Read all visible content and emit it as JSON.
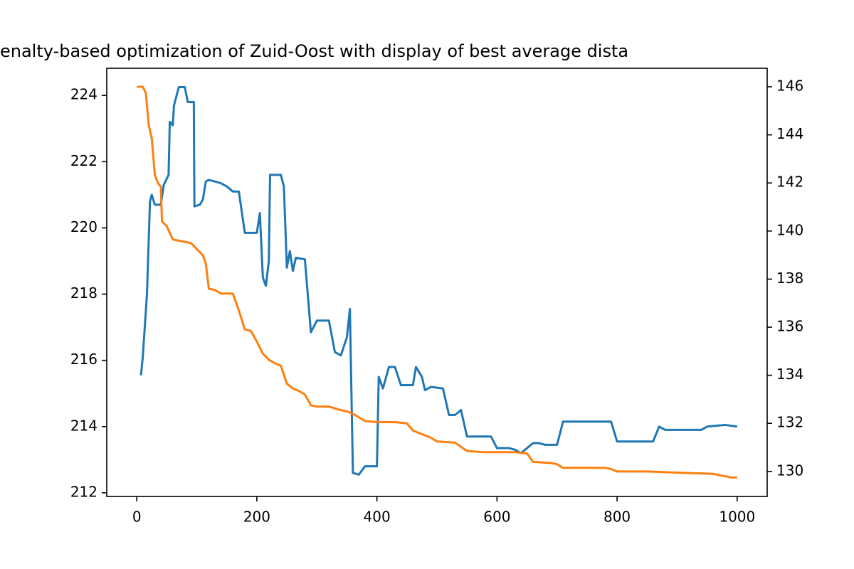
{
  "chart_data": {
    "type": "line",
    "title": "enalty-based optimization of Zuid-Oost with display of best average dista",
    "xlim": [
      -50,
      1050
    ],
    "xticks": [
      0,
      200,
      400,
      600,
      800,
      1000
    ],
    "ylim": [
      211.89,
      224.82
    ],
    "yticks": [
      212,
      214,
      216,
      218,
      220,
      222,
      224
    ],
    "y2lim": [
      128.96,
      146.77
    ],
    "y2ticks": [
      130,
      132,
      134,
      136,
      138,
      140,
      142,
      144,
      146
    ],
    "grid": false,
    "series": [
      {
        "color": "#1f77b4",
        "axis": "y",
        "x": [
          7,
          10,
          17,
          22,
          25,
          30,
          40,
          45,
          53,
          55,
          60,
          62,
          70,
          80,
          85,
          95,
          96,
          105,
          110,
          115,
          120,
          130,
          140,
          150,
          160,
          170,
          180,
          200,
          205,
          210,
          215,
          220,
          222,
          240,
          245,
          250,
          255,
          260,
          265,
          280,
          290,
          300,
          320,
          330,
          340,
          350,
          355,
          360,
          370,
          380,
          400,
          403,
          410,
          420,
          430,
          440,
          460,
          465,
          475,
          480,
          490,
          510,
          520,
          530,
          540,
          550,
          590,
          600,
          620,
          630,
          640,
          660,
          670,
          680,
          700,
          710,
          790,
          800,
          860,
          870,
          880,
          940,
          950,
          980,
          1000
        ],
        "values": [
          215.55,
          216.1,
          218.0,
          220.8,
          221.0,
          220.7,
          220.7,
          221.3,
          221.6,
          223.2,
          223.1,
          223.7,
          224.25,
          224.25,
          223.8,
          223.8,
          220.65,
          220.7,
          220.85,
          221.4,
          221.45,
          221.4,
          221.35,
          221.25,
          221.1,
          221.1,
          219.85,
          219.85,
          220.45,
          218.5,
          218.25,
          219.0,
          221.6,
          221.6,
          221.25,
          218.8,
          219.3,
          218.7,
          219.1,
          219.05,
          216.85,
          217.2,
          217.2,
          216.25,
          216.15,
          216.7,
          217.55,
          212.6,
          212.55,
          212.8,
          212.8,
          215.5,
          215.15,
          215.8,
          215.8,
          215.25,
          215.25,
          215.8,
          215.5,
          215.1,
          215.2,
          215.15,
          214.35,
          214.35,
          214.5,
          213.7,
          213.7,
          213.35,
          213.35,
          213.3,
          213.2,
          213.5,
          213.5,
          213.45,
          213.45,
          214.15,
          214.15,
          213.55,
          213.55,
          214.0,
          213.9,
          213.9,
          214.0,
          214.05,
          214.0
        ]
      },
      {
        "color": "#ff7f0e",
        "axis": "y2",
        "x": [
          0,
          10,
          15,
          20,
          25,
          30,
          35,
          40,
          42,
          50,
          60,
          70,
          80,
          90,
          100,
          110,
          115,
          120,
          130,
          140,
          160,
          170,
          180,
          190,
          200,
          210,
          220,
          230,
          240,
          250,
          260,
          270,
          280,
          290,
          300,
          320,
          340,
          350,
          360,
          380,
          400,
          430,
          450,
          460,
          480,
          490,
          500,
          530,
          550,
          580,
          600,
          630,
          650,
          660,
          690,
          700,
          710,
          780,
          790,
          800,
          850,
          900,
          960,
          990,
          1000
        ],
        "values": [
          146,
          146,
          145.75,
          144.4,
          143.85,
          142.35,
          142,
          141.85,
          140.4,
          140.2,
          139.65,
          139.6,
          139.55,
          139.5,
          139.25,
          139,
          138.65,
          137.6,
          137.55,
          137.4,
          137.4,
          136.7,
          135.9,
          135.85,
          135.4,
          134.9,
          134.65,
          134.5,
          134.4,
          133.65,
          133.45,
          133.35,
          133.2,
          132.75,
          132.7,
          132.7,
          132.55,
          132.5,
          132.4,
          132.1,
          132.05,
          132.05,
          132,
          131.7,
          131.5,
          131.4,
          131.25,
          131.2,
          130.85,
          130.8,
          130.8,
          130.8,
          130.75,
          130.4,
          130.35,
          130.3,
          130.15,
          130.15,
          130.1,
          130,
          130,
          129.95,
          129.9,
          129.75,
          129.75
        ]
      }
    ]
  }
}
